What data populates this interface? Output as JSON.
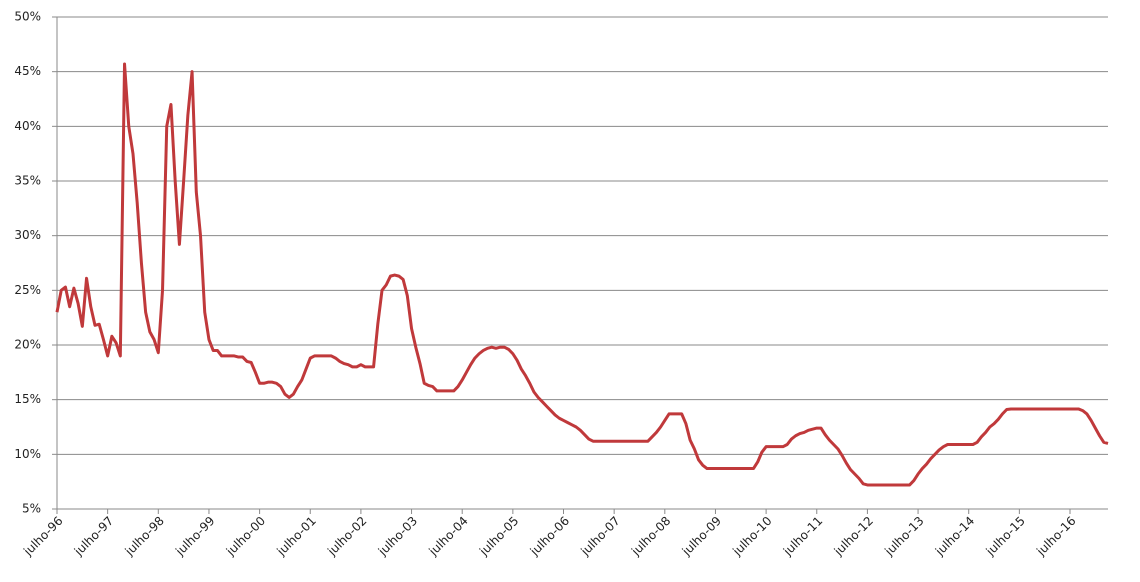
{
  "chart_data": {
    "type": "line",
    "categories": [
      "julho-96",
      null,
      null,
      null,
      null,
      null,
      null,
      null,
      null,
      null,
      null,
      null,
      "julho-97",
      null,
      null,
      null,
      null,
      null,
      null,
      null,
      null,
      null,
      null,
      null,
      "julho-98",
      null,
      null,
      null,
      null,
      null,
      null,
      null,
      null,
      null,
      null,
      null,
      "julho-99",
      null,
      null,
      null,
      null,
      null,
      null,
      null,
      null,
      null,
      null,
      null,
      "julho-00",
      null,
      null,
      null,
      null,
      null,
      null,
      null,
      null,
      null,
      null,
      null,
      "julho-01",
      null,
      null,
      null,
      null,
      null,
      null,
      null,
      null,
      null,
      null,
      null,
      "julho-02",
      null,
      null,
      null,
      null,
      null,
      null,
      null,
      null,
      null,
      null,
      null,
      "julho-03",
      null,
      null,
      null,
      null,
      null,
      null,
      null,
      null,
      null,
      null,
      null,
      "julho-04",
      null,
      null,
      null,
      null,
      null,
      null,
      null,
      null,
      null,
      null,
      null,
      "julho-05",
      null,
      null,
      null,
      null,
      null,
      null,
      null,
      null,
      null,
      null,
      null,
      "julho-06",
      null,
      null,
      null,
      null,
      null,
      null,
      null,
      null,
      null,
      null,
      null,
      "julho-07",
      null,
      null,
      null,
      null,
      null,
      null,
      null,
      null,
      null,
      null,
      null,
      "julho-08",
      null,
      null,
      null,
      null,
      null,
      null,
      null,
      null,
      null,
      null,
      null,
      "julho-09",
      null,
      null,
      null,
      null,
      null,
      null,
      null,
      null,
      null,
      null,
      null,
      "julho-10",
      null,
      null,
      null,
      null,
      null,
      null,
      null,
      null,
      null,
      null,
      null,
      "julho-11",
      null,
      null,
      null,
      null,
      null,
      null,
      null,
      null,
      null,
      null,
      null,
      "julho-12",
      null,
      null,
      null,
      null,
      null,
      null,
      null,
      null,
      null,
      null,
      null,
      "julho-13",
      null,
      null,
      null,
      null,
      null,
      null,
      null,
      null,
      null,
      null,
      null,
      "julho-14",
      null,
      null,
      null,
      null,
      null,
      null,
      null,
      null,
      null,
      null,
      null,
      "julho-15",
      null,
      null,
      null,
      null,
      null,
      null,
      null,
      null,
      null,
      null,
      null,
      "julho-16",
      null,
      null,
      null,
      null,
      null,
      null,
      null,
      null,
      null
    ],
    "values": [
      23,
      25,
      25.3,
      23.5,
      25.2,
      23.8,
      21.7,
      26.1,
      23.5,
      21.8,
      21.9,
      20.5,
      19,
      20.8,
      20.2,
      19,
      45.7,
      40,
      37.5,
      33,
      27.5,
      23,
      21.2,
      20.5,
      19.3,
      25,
      40,
      42,
      35,
      29.2,
      35,
      41,
      45,
      34,
      30,
      23,
      20.5,
      19.5,
      19.5,
      19,
      19,
      19,
      19,
      18.9,
      18.9,
      18.5,
      18.4,
      17.5,
      16.5,
      16.5,
      16.6,
      16.6,
      16.5,
      16.2,
      15.5,
      15.2,
      15.5,
      16.2,
      16.8,
      17.8,
      18.8,
      19,
      19,
      19,
      19,
      19,
      18.8,
      18.5,
      18.3,
      18.2,
      18,
      18,
      18.2,
      18,
      18,
      18,
      21.9,
      25,
      25.5,
      26.3,
      26.4,
      26.3,
      26,
      24.5,
      21.5,
      19.8,
      18.3,
      16.5,
      16.3,
      16.2,
      15.8,
      15.8,
      15.8,
      15.8,
      15.8,
      16.2,
      16.8,
      17.5,
      18.2,
      18.8,
      19.2,
      19.5,
      19.7,
      19.8,
      19.7,
      19.8,
      19.8,
      19.6,
      19.2,
      18.6,
      17.8,
      17.2,
      16.5,
      15.7,
      15.2,
      14.8,
      14.4,
      14,
      13.6,
      13.3,
      13.1,
      12.9,
      12.7,
      12.5,
      12.2,
      11.8,
      11.4,
      11.2,
      11.2,
      11.2,
      11.2,
      11.2,
      11.2,
      11.2,
      11.2,
      11.2,
      11.2,
      11.2,
      11.2,
      11.2,
      11.2,
      11.6,
      12,
      12.5,
      13.1,
      13.7,
      13.7,
      13.7,
      13.7,
      12.8,
      11.3,
      10.5,
      9.5,
      9,
      8.7,
      8.7,
      8.7,
      8.7,
      8.7,
      8.7,
      8.7,
      8.7,
      8.7,
      8.7,
      8.7,
      8.7,
      9.3,
      10.2,
      10.7,
      10.7,
      10.7,
      10.7,
      10.7,
      10.9,
      11.4,
      11.7,
      11.9,
      12,
      12.2,
      12.3,
      12.4,
      12.4,
      11.8,
      11.3,
      10.9,
      10.5,
      9.9,
      9.2,
      8.6,
      8.2,
      7.8,
      7.3,
      7.2,
      7.2,
      7.2,
      7.2,
      7.2,
      7.2,
      7.2,
      7.2,
      7.2,
      7.2,
      7.2,
      7.6,
      8.2,
      8.7,
      9.1,
      9.6,
      10,
      10.4,
      10.7,
      10.9,
      10.9,
      10.9,
      10.9,
      10.9,
      10.9,
      10.9,
      11.1,
      11.6,
      12,
      12.5,
      12.8,
      13.2,
      13.7,
      14.1,
      14.15,
      14.15,
      14.15,
      14.15,
      14.15,
      14.15,
      14.15,
      14.15,
      14.15,
      14.15,
      14.15,
      14.15,
      14.15,
      14.15,
      14.15,
      14.15,
      14.15,
      14,
      13.7,
      13.1,
      12.4,
      11.7,
      11.1,
      11
    ],
    "color": "#c0393b",
    "ylim": [
      5,
      50
    ],
    "yticks": [
      {
        "value": 5,
        "label": "5%"
      },
      {
        "value": 10,
        "label": "10%"
      },
      {
        "value": 15,
        "label": "15%"
      },
      {
        "value": 20,
        "label": "20%"
      },
      {
        "value": 25,
        "label": "25%"
      },
      {
        "value": 30,
        "label": "30%"
      },
      {
        "value": 35,
        "label": "35%"
      },
      {
        "value": 40,
        "label": "40%"
      },
      {
        "value": 45,
        "label": "45%"
      },
      {
        "value": 50,
        "label": "50%"
      }
    ],
    "grid": true
  }
}
